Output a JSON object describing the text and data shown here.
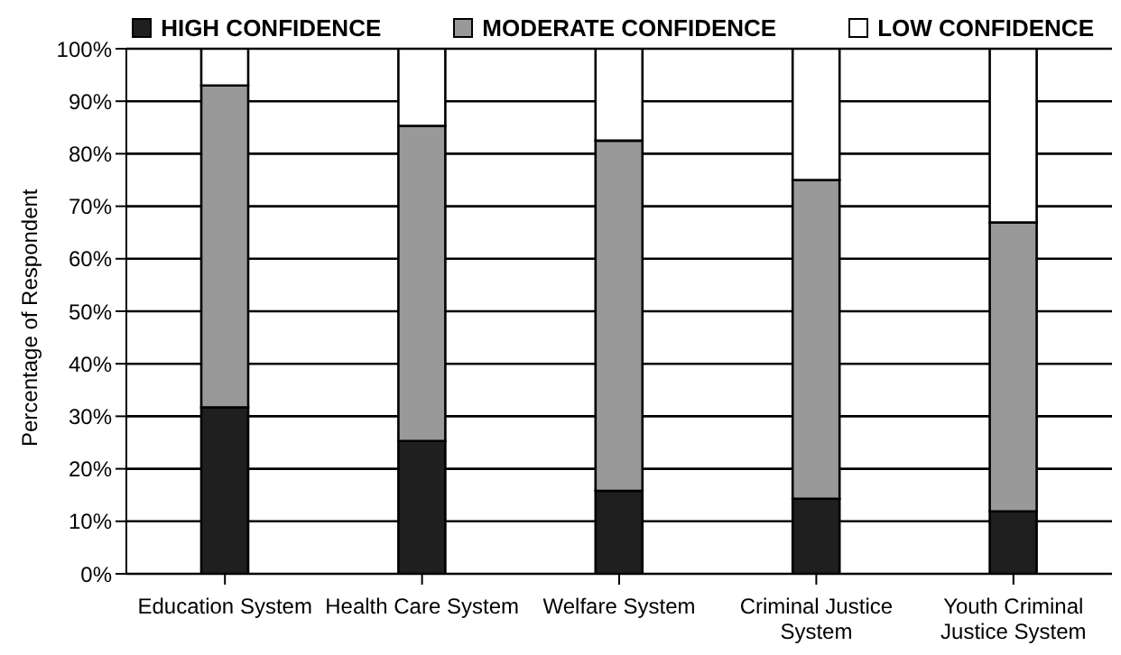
{
  "chart_data": {
    "type": "bar",
    "stacked": true,
    "ylabel": "Percentage of Respondent",
    "categories": [
      "Education System",
      "Health Care System",
      "Welfare System",
      "Criminal Justice System",
      "Youth Criminal Justice System"
    ],
    "series": [
      {
        "name": "HIGH CONFIDENCE",
        "color": "#1f1f1f",
        "values": [
          31.7,
          25.3,
          15.8,
          14.3,
          11.9
        ]
      },
      {
        "name": "MODERATE CONFIDENCE",
        "color": "#999999",
        "values": [
          61.3,
          60,
          66.7,
          60.7,
          55
        ]
      },
      {
        "name": "LOW CONFIDENCE",
        "color": "#ffffff",
        "values": [
          7,
          14.7,
          17.5,
          25,
          33.1
        ]
      }
    ],
    "ylim": [
      0,
      100
    ],
    "yticks": [
      {
        "value": 0,
        "label": "0%"
      },
      {
        "value": 10,
        "label": "10%"
      },
      {
        "value": 20,
        "label": "20%"
      },
      {
        "value": 30,
        "label": "30%"
      },
      {
        "value": 40,
        "label": "40%"
      },
      {
        "value": 50,
        "label": "50%"
      },
      {
        "value": 60,
        "label": "60%"
      },
      {
        "value": 70,
        "label": "70%"
      },
      {
        "value": 80,
        "label": "80%"
      },
      {
        "value": 90,
        "label": "90%"
      },
      {
        "value": 100,
        "label": "100%"
      }
    ],
    "grid": "y",
    "legend": "top"
  }
}
